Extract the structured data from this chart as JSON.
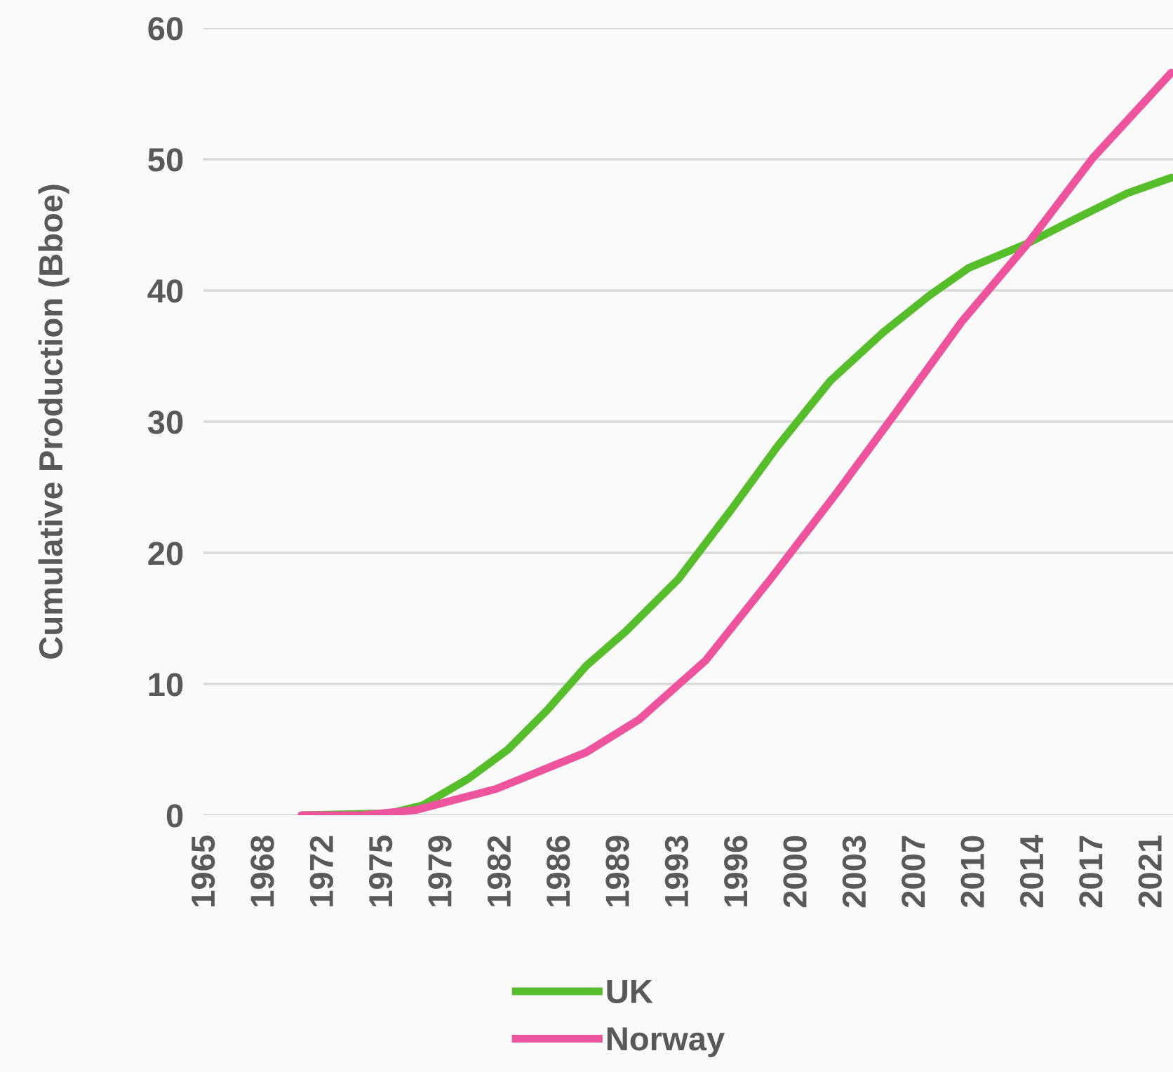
{
  "chart_data": {
    "type": "line",
    "ylabel": "Cumulative Production (Bboe)",
    "xlim": [
      1964.85,
      2021.7
    ],
    "xticks": [
      {
        "value": 1965,
        "label": "1965"
      },
      {
        "value": 1968.47,
        "label": "1968"
      },
      {
        "value": 1971.94,
        "label": "1972"
      },
      {
        "value": 1975.41,
        "label": "1975"
      },
      {
        "value": 1978.88,
        "label": "1979"
      },
      {
        "value": 1982.35,
        "label": "1982"
      },
      {
        "value": 1985.82,
        "label": "1986"
      },
      {
        "value": 1989.29,
        "label": "1989"
      },
      {
        "value": 1992.76,
        "label": "1993"
      },
      {
        "value": 1996.23,
        "label": "1996"
      },
      {
        "value": 1999.7,
        "label": "2000"
      },
      {
        "value": 2003.17,
        "label": "2003"
      },
      {
        "value": 2006.64,
        "label": "2007"
      },
      {
        "value": 2010.11,
        "label": "2010"
      },
      {
        "value": 2013.58,
        "label": "2014"
      },
      {
        "value": 2017.05,
        "label": "2017"
      },
      {
        "value": 2020.52,
        "label": "2021"
      }
    ],
    "ylim": [
      0,
      60
    ],
    "yticks": [
      0,
      10,
      20,
      30,
      40,
      50,
      60
    ],
    "grid": "y",
    "legend": "bottom",
    "marker": "none",
    "line_style": "solid",
    "series": [
      {
        "name": "UK",
        "color": "#56bd2b",
        "x": [
          1970.6,
          1975.8,
          1977.7,
          1980.4,
          1982.7,
          1985.0,
          1987.3,
          1989.6,
          1992.7,
          1995.8,
          1998.5,
          2001.6,
          2004.7,
          2007.4,
          2009.7,
          2013.2,
          2015.9,
          2019.0,
          2021.6
        ],
        "values": [
          0,
          0.15,
          0.75,
          2.8,
          5.0,
          8.0,
          11.4,
          14.0,
          18.0,
          23.3,
          28.1,
          33.1,
          36.8,
          39.6,
          41.7,
          43.6,
          45.4,
          47.4,
          48.6
        ]
      },
      {
        "name": "Norway",
        "color": "#ee539d",
        "x": [
          1970.6,
          1974.2,
          1977.3,
          1982.0,
          1987.3,
          1990.4,
          1994.3,
          1998.1,
          2002.0,
          2005.4,
          2009.3,
          2013.2,
          2017.0,
          2021.6
        ],
        "values": [
          0,
          0,
          0.4,
          2.0,
          4.8,
          7.3,
          11.8,
          18.0,
          24.6,
          30.6,
          37.6,
          43.6,
          50.1,
          56.6
        ]
      }
    ]
  }
}
